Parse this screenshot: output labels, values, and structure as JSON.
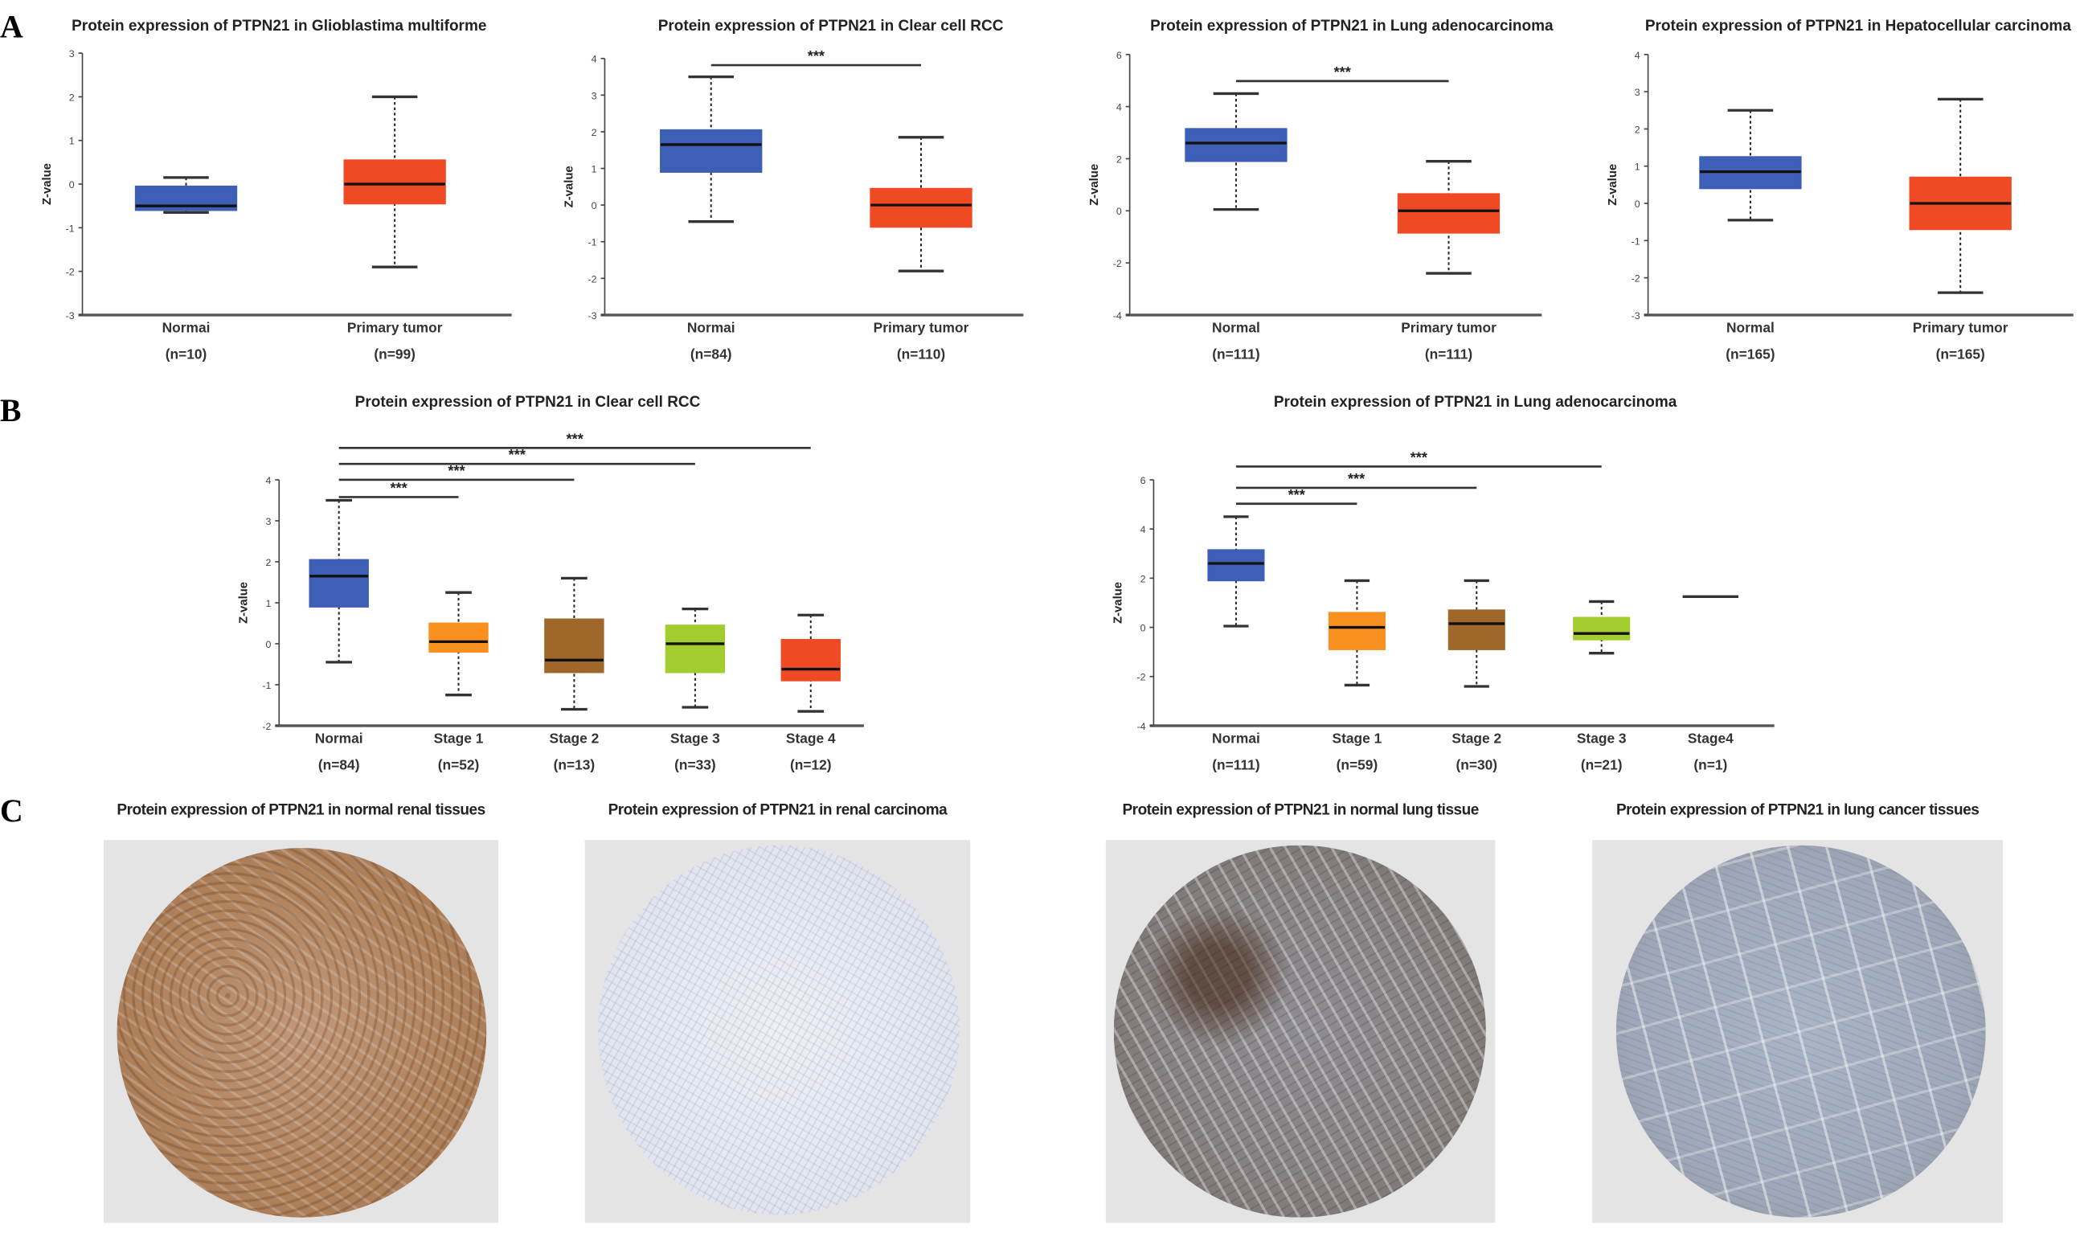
{
  "panels": {
    "a": "A",
    "b": "B",
    "c": "C"
  },
  "colors": {
    "normal": "#3d5fb5",
    "tumor": "#f04a24",
    "stage1": "#f7901e",
    "stage2": "#a0672a",
    "stage3": "#a3cc2e",
    "stage4": "#f04a24"
  },
  "chart_data": [
    {
      "type": "box",
      "title": "Protein expression of PTPN21 in Glioblastima multiforme",
      "ylabel": "Z-value",
      "ylim": [
        -3,
        3
      ],
      "yticks": [
        "-3",
        "-2",
        "-1",
        "0",
        "1",
        "2",
        "3"
      ],
      "categories": [
        "Normai",
        "Primary tumor"
      ],
      "n": [
        "(n=10)",
        "(n=99)"
      ],
      "boxes": [
        {
          "min": -0.65,
          "q1": -0.6,
          "median": -0.5,
          "q3": -0.05,
          "max": 0.15,
          "color": "#3d5fb5"
        },
        {
          "min": -1.9,
          "q1": -0.45,
          "median": 0,
          "q3": 0.55,
          "max": 2.0,
          "color": "#f04a24"
        }
      ],
      "significance": []
    },
    {
      "type": "box",
      "title": "Protein expression of PTPN21 in Clear cell RCC",
      "ylabel": "Z-value",
      "ylim": [
        -3,
        4
      ],
      "yticks": [
        "-3",
        "-2",
        "-1",
        "0",
        "1",
        "2",
        "3",
        "4"
      ],
      "categories": [
        "Normai",
        "Primary tumor"
      ],
      "n": [
        "(n=84)",
        "(n=110)"
      ],
      "boxes": [
        {
          "min": -0.45,
          "q1": 0.9,
          "median": 1.65,
          "q3": 2.05,
          "max": 3.5,
          "color": "#3d5fb5"
        },
        {
          "min": -1.8,
          "q1": -0.6,
          "median": 0,
          "q3": 0.45,
          "max": 1.85,
          "color": "#f04a24"
        }
      ],
      "significance": [
        {
          "from": 0,
          "to": 1,
          "label": "***"
        }
      ]
    },
    {
      "type": "box",
      "title": "Protein expression of PTPN21 in Lung adenocarcinoma",
      "ylabel": "Z-value",
      "ylim": [
        -4,
        6
      ],
      "yticks": [
        "-4",
        "-2",
        "0",
        "2",
        "4",
        "6"
      ],
      "categories": [
        "Normal",
        "Primary tumor"
      ],
      "n": [
        "(n=111)",
        "(n=111)"
      ],
      "boxes": [
        {
          "min": 0.05,
          "q1": 1.9,
          "median": 2.6,
          "q3": 3.15,
          "max": 4.5,
          "color": "#3d5fb5"
        },
        {
          "min": -2.4,
          "q1": -0.85,
          "median": 0,
          "q3": 0.65,
          "max": 1.9,
          "color": "#f04a24"
        }
      ],
      "significance": [
        {
          "from": 0,
          "to": 1,
          "label": "***"
        }
      ]
    },
    {
      "type": "box",
      "title": "Protein expression of PTPN21 in Hepatocellular carcinoma",
      "ylabel": "Z-value",
      "ylim": [
        -3,
        4
      ],
      "yticks": [
        "-3",
        "-2",
        "-1",
        "0",
        "1",
        "2",
        "3",
        "4"
      ],
      "categories": [
        "Normal",
        "Primary tumor"
      ],
      "n": [
        "(n=165)",
        "(n=165)"
      ],
      "boxes": [
        {
          "min": -0.45,
          "q1": 0.4,
          "median": 0.85,
          "q3": 1.25,
          "max": 2.5,
          "color": "#3d5fb5"
        },
        {
          "min": -2.4,
          "q1": -0.7,
          "median": 0,
          "q3": 0.7,
          "max": 2.8,
          "color": "#f04a24"
        }
      ],
      "significance": []
    },
    {
      "type": "box",
      "title": "Protein expression of PTPN21 in Clear cell RCC",
      "ylabel": "Z-value",
      "ylim": [
        -2,
        4
      ],
      "yticks": [
        "-2",
        "-1",
        "0",
        "1",
        "2",
        "3",
        "4"
      ],
      "categories": [
        "Normai",
        "Stage 1",
        "Stage 2",
        "Stage 3",
        "Stage 4"
      ],
      "n": [
        "(n=84)",
        "(n=52)",
        "(n=13)",
        "(n=33)",
        "(n=12)"
      ],
      "boxes": [
        {
          "min": -0.45,
          "q1": 0.9,
          "median": 1.65,
          "q3": 2.05,
          "max": 3.5,
          "color": "#3d5fb5"
        },
        {
          "min": -1.25,
          "q1": -0.2,
          "median": 0.05,
          "q3": 0.5,
          "max": 1.25,
          "color": "#f7901e"
        },
        {
          "min": -1.6,
          "q1": -0.7,
          "median": -0.4,
          "q3": 0.6,
          "max": 1.6,
          "color": "#a0672a"
        },
        {
          "min": -1.55,
          "q1": -0.7,
          "median": 0,
          "q3": 0.45,
          "max": 0.85,
          "color": "#a3cc2e"
        },
        {
          "min": -1.65,
          "q1": -0.9,
          "median": -0.62,
          "q3": 0.1,
          "max": 0.7,
          "color": "#f04a24"
        }
      ],
      "significance": [
        {
          "from": 0,
          "to": 1,
          "label": "***"
        },
        {
          "from": 0,
          "to": 2,
          "label": "***"
        },
        {
          "from": 0,
          "to": 3,
          "label": "***"
        },
        {
          "from": 0,
          "to": 4,
          "label": "***"
        }
      ]
    },
    {
      "type": "box",
      "title": "Protein expression of PTPN21 in Lung adenocarcinoma",
      "ylabel": "Z-value",
      "ylim": [
        -4,
        6
      ],
      "yticks": [
        "-4",
        "-2",
        "0",
        "2",
        "4",
        "6"
      ],
      "categories": [
        "Normai",
        "Stage 1",
        "Stage 2",
        "Stage 3",
        "Stage4"
      ],
      "n": [
        "(n=111)",
        "(n=59)",
        "(n=30)",
        "(n=21)",
        "(n=1)"
      ],
      "boxes": [
        {
          "min": 0.05,
          "q1": 1.9,
          "median": 2.6,
          "q3": 3.15,
          "max": 4.5,
          "color": "#3d5fb5"
        },
        {
          "min": -2.35,
          "q1": -0.9,
          "median": 0,
          "q3": 0.6,
          "max": 1.9,
          "color": "#f7901e"
        },
        {
          "min": -2.4,
          "q1": -0.9,
          "median": 0.15,
          "q3": 0.7,
          "max": 1.9,
          "color": "#a0672a"
        },
        {
          "min": -1.05,
          "q1": -0.5,
          "median": -0.25,
          "q3": 0.4,
          "max": 1.05,
          "color": "#a3cc2e"
        },
        {
          "median": 1.25,
          "color": "#333333"
        }
      ],
      "significance": [
        {
          "from": 0,
          "to": 1,
          "label": "***"
        },
        {
          "from": 0,
          "to": 2,
          "label": "***"
        },
        {
          "from": 0,
          "to": 3,
          "label": "***"
        }
      ]
    }
  ],
  "tissues": [
    {
      "title": "Protein expression of PTPN21 in normal renal tissues"
    },
    {
      "title": "Protein expression of PTPN21 in renal carcinoma"
    },
    {
      "title": "Protein expression of PTPN21 in normal lung tissue"
    },
    {
      "title": "Protein expression of PTPN21 in lung cancer tissues"
    }
  ]
}
